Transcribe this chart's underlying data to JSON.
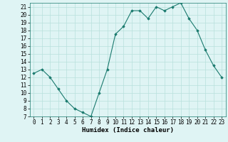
{
  "x": [
    0,
    1,
    2,
    3,
    4,
    5,
    6,
    7,
    8,
    9,
    10,
    11,
    12,
    13,
    14,
    15,
    16,
    17,
    18,
    19,
    20,
    21,
    22,
    23
  ],
  "y": [
    12.5,
    13.0,
    12.0,
    10.5,
    9.0,
    8.0,
    7.5,
    7.0,
    10.0,
    13.0,
    17.5,
    18.5,
    20.5,
    20.5,
    19.5,
    21.0,
    20.5,
    21.0,
    21.5,
    19.5,
    18.0,
    15.5,
    13.5,
    12.0
  ],
  "xlabel": "Humidex (Indice chaleur)",
  "ylim": [
    7,
    21.5
  ],
  "xlim": [
    -0.5,
    23.5
  ],
  "yticks": [
    7,
    8,
    9,
    10,
    11,
    12,
    13,
    14,
    15,
    16,
    17,
    18,
    19,
    20,
    21
  ],
  "xticks": [
    0,
    1,
    2,
    3,
    4,
    5,
    6,
    7,
    8,
    9,
    10,
    11,
    12,
    13,
    14,
    15,
    16,
    17,
    18,
    19,
    20,
    21,
    22,
    23
  ],
  "line_color": "#1a7a6e",
  "marker_color": "#1a7a6e",
  "bg_color": "#dff4f4",
  "grid_color": "#b8e0dc",
  "label_fontsize": 6.5,
  "tick_fontsize": 5.5
}
